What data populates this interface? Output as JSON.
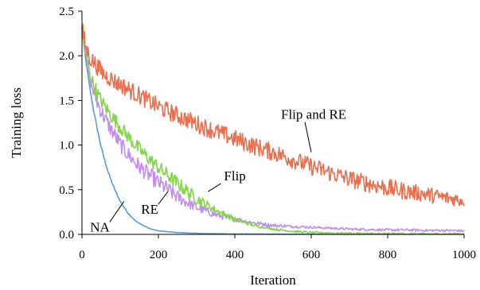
{
  "chart_data": {
    "type": "line",
    "title": "",
    "xlabel": "Iteration",
    "ylabel": "Training loss",
    "xlim": [
      0,
      1000
    ],
    "ylim": [
      0,
      2.5
    ],
    "xticks": [
      0,
      200,
      400,
      600,
      800,
      1000
    ],
    "yticks": [
      "0.0",
      "0.5",
      "1.0",
      "1.5",
      "2.0",
      "2.5"
    ],
    "grid": false,
    "x": [
      0,
      10,
      20,
      30,
      40,
      50,
      60,
      70,
      80,
      90,
      100,
      120,
      140,
      160,
      180,
      200,
      250,
      300,
      350,
      400,
      450,
      500,
      550,
      600,
      650,
      700,
      750,
      800,
      850,
      900,
      950,
      1000
    ],
    "series": [
      {
        "name": "NA",
        "color": "#5b9bd5",
        "values": [
          2.3,
          1.95,
          1.65,
          1.4,
          1.18,
          0.98,
          0.82,
          0.68,
          0.56,
          0.46,
          0.37,
          0.24,
          0.15,
          0.1,
          0.06,
          0.04,
          0.02,
          0.012,
          0.008,
          0.005,
          0.004,
          0.003,
          0.002,
          0.002,
          0.001,
          0.001,
          0.001,
          0.001,
          0.001,
          0.001,
          0.001,
          0.001
        ]
      },
      {
        "name": "RE",
        "color": "#c48cf0",
        "values": [
          2.3,
          2.05,
          1.75,
          1.6,
          1.48,
          1.38,
          1.3,
          1.22,
          1.15,
          1.08,
          1.01,
          0.9,
          0.8,
          0.72,
          0.65,
          0.58,
          0.42,
          0.3,
          0.22,
          0.17,
          0.13,
          0.1,
          0.09,
          0.08,
          0.07,
          0.06,
          0.055,
          0.05,
          0.05,
          0.045,
          0.045,
          0.04
        ]
      },
      {
        "name": "Flip",
        "color": "#84d44c",
        "values": [
          2.3,
          2.0,
          1.8,
          1.68,
          1.58,
          1.5,
          1.43,
          1.37,
          1.31,
          1.26,
          1.2,
          1.1,
          1.0,
          0.91,
          0.83,
          0.75,
          0.57,
          0.4,
          0.27,
          0.17,
          0.1,
          0.06,
          0.035,
          0.02,
          0.015,
          0.01,
          0.008,
          0.007,
          0.006,
          0.005,
          0.005,
          0.005
        ]
      },
      {
        "name": "Flip and RE",
        "color": "#e8704f",
        "values": [
          2.3,
          2.1,
          1.98,
          1.93,
          1.88,
          1.83,
          1.78,
          1.76,
          1.73,
          1.7,
          1.68,
          1.63,
          1.58,
          1.53,
          1.48,
          1.43,
          1.33,
          1.24,
          1.15,
          1.07,
          0.99,
          0.92,
          0.84,
          0.76,
          0.69,
          0.62,
          0.57,
          0.52,
          0.48,
          0.45,
          0.41,
          0.38
        ]
      }
    ],
    "annotations": [
      {
        "text": "NA",
        "series": "NA",
        "x": 110,
        "y": 0.37
      },
      {
        "text": "RE",
        "series": "RE",
        "x": 225,
        "y": 0.48
      },
      {
        "text": "Flip",
        "series": "Flip",
        "x": 330,
        "y": 0.48
      },
      {
        "text": "Flip and RE",
        "series": "Flip and RE",
        "x": 600,
        "y": 0.92
      }
    ]
  }
}
